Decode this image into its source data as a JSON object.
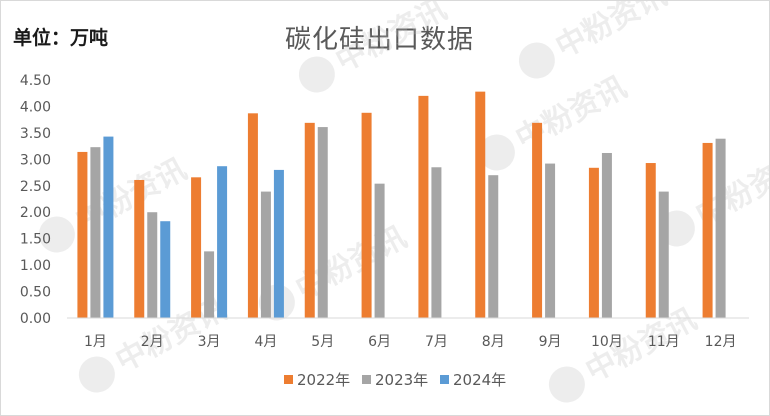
{
  "unit_label": "单位：万吨",
  "watermark": "中粉资讯",
  "chart_data": {
    "type": "bar",
    "title": "碳化硅出口数据",
    "xlabel": "",
    "ylabel": "",
    "ylim": [
      0,
      4.5
    ],
    "yticks": [
      "0.00",
      "0.50",
      "1.00",
      "1.50",
      "2.00",
      "2.50",
      "3.00",
      "3.50",
      "4.00",
      "4.50"
    ],
    "grid": false,
    "legend_position": "bottom",
    "categories": [
      "1月",
      "2月",
      "3月",
      "4月",
      "5月",
      "6月",
      "7月",
      "8月",
      "9月",
      "10月",
      "11月",
      "12月"
    ],
    "series": [
      {
        "name": "2022年",
        "color": "#ed7d31",
        "values": [
          3.14,
          2.61,
          2.66,
          3.87,
          3.69,
          3.88,
          4.2,
          4.28,
          3.69,
          2.84,
          2.93,
          3.31
        ]
      },
      {
        "name": "2023年",
        "color": "#a5a5a5",
        "values": [
          3.23,
          2.0,
          1.26,
          2.39,
          3.61,
          2.54,
          2.85,
          2.7,
          2.92,
          3.12,
          2.39,
          3.39
        ]
      },
      {
        "name": "2024年",
        "color": "#5b9bd5",
        "values": [
          3.43,
          1.83,
          2.87,
          2.8,
          null,
          null,
          null,
          null,
          null,
          null,
          null,
          null
        ]
      }
    ]
  }
}
